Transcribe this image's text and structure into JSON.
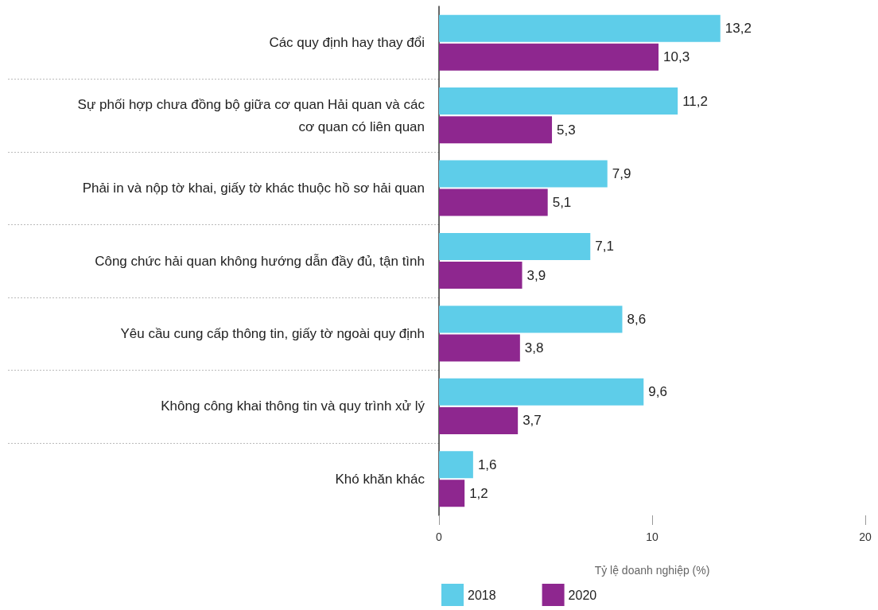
{
  "chart_data": {
    "type": "bar",
    "orientation": "horizontal",
    "xlabel": "Tỷ lệ doanh nghiệp (%)",
    "categories": [
      "Các quy định hay thay đổi",
      "Sự phối hợp chưa đồng bộ giữa cơ quan Hải quan và các cơ quan có liên quan",
      "Phải in và nộp tờ khai, giấy tờ khác thuộc hồ sơ hải quan",
      "Công chức hải quan không hướng dẫn đầy đủ, tận tình",
      "Yêu cầu cung cấp thông tin, giấy tờ ngoài quy định",
      "Không công khai thông tin và quy trình xử lý",
      "Khó khăn khác"
    ],
    "series": [
      {
        "name": "2018",
        "color": "#5ecde9",
        "values": [
          13.2,
          11.2,
          7.9,
          7.1,
          8.6,
          9.6,
          1.6
        ],
        "value_labels": [
          "13,2",
          "11,2",
          "7,9",
          "7,1",
          "8,6",
          "9,6",
          "1,6"
        ]
      },
      {
        "name": "2020",
        "color": "#8e278f",
        "values": [
          10.3,
          5.3,
          5.1,
          3.9,
          3.8,
          3.7,
          1.2
        ],
        "value_labels": [
          "10,3",
          "5,3",
          "5,1",
          "3,9",
          "3,8",
          "3,7",
          "1,2"
        ]
      }
    ],
    "xlim": [
      0,
      20
    ],
    "xticks": [
      0,
      10,
      20
    ],
    "grid": "y",
    "legend": "bottom left"
  }
}
